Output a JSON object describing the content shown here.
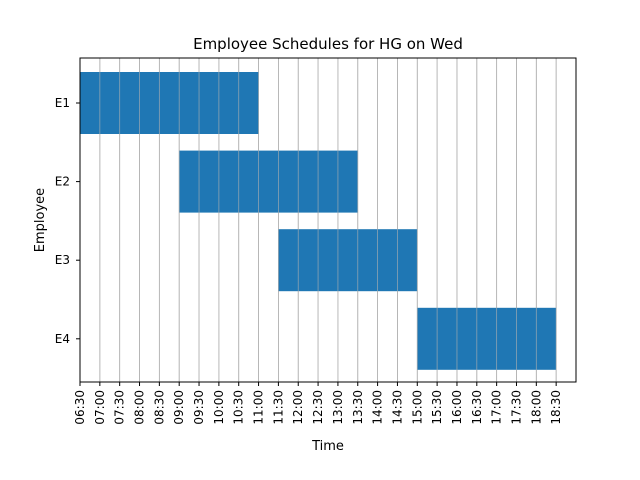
{
  "chart_data": {
    "type": "gantt",
    "title": "Employee Schedules for HG on Wed",
    "xlabel": "Time",
    "ylabel": "Employee",
    "x_ticks": [
      "06:30",
      "07:00",
      "07:30",
      "08:00",
      "08:30",
      "09:00",
      "09:30",
      "10:00",
      "10:30",
      "11:00",
      "11:30",
      "12:00",
      "12:30",
      "13:00",
      "13:30",
      "14:00",
      "14:30",
      "15:00",
      "15:30",
      "16:00",
      "16:30",
      "17:00",
      "17:30",
      "18:00",
      "18:30"
    ],
    "xlim": [
      "06:30",
      "19:00"
    ],
    "grid": "vertical",
    "bar_color": "#1f77b4",
    "categories": [
      "E1",
      "E2",
      "E3",
      "E4"
    ],
    "series": [
      {
        "employee": "E1",
        "start": "06:30",
        "end": "11:00"
      },
      {
        "employee": "E2",
        "start": "09:00",
        "end": "13:30"
      },
      {
        "employee": "E3",
        "start": "11:30",
        "end": "15:00"
      },
      {
        "employee": "E4",
        "start": "15:00",
        "end": "18:30"
      }
    ]
  }
}
